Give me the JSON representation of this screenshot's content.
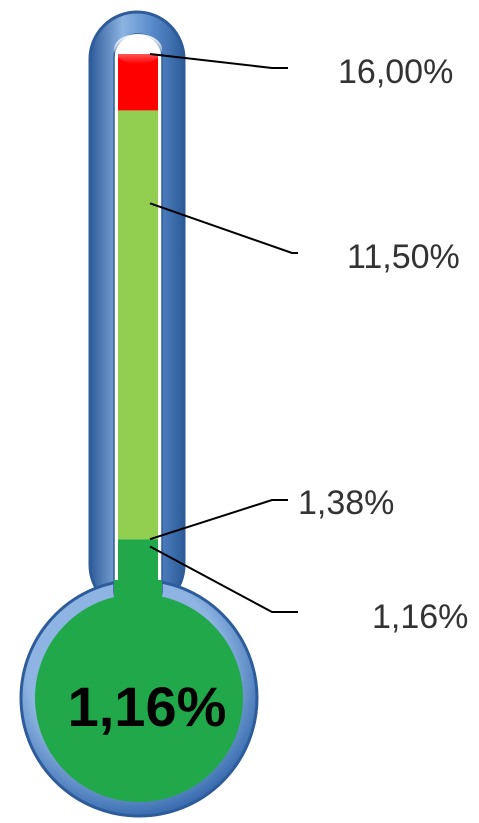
{
  "chart_data": {
    "type": "thermometer",
    "scale_max": 16.0,
    "value": 1.16,
    "value_label": "1,16%",
    "markers": [
      {
        "value": 16.0,
        "label": "16,00%"
      },
      {
        "value": 11.5,
        "label": "11,50%"
      },
      {
        "value": 1.38,
        "label": "1,38%"
      },
      {
        "value": 1.16,
        "label": "1,16%"
      }
    ],
    "bands": [
      {
        "from": 0,
        "to": 1.38,
        "color": "#21a84a"
      },
      {
        "from": 1.38,
        "to": 14.3,
        "color": "#92cf50"
      },
      {
        "from": 14.3,
        "to": 16.0,
        "color": "#ff0000"
      }
    ],
    "colors": {
      "bulb": "#21a84a",
      "frame": "#4f81bd",
      "frame_light": "#8db4e2",
      "frame_dark": "#2e5c9a"
    }
  }
}
